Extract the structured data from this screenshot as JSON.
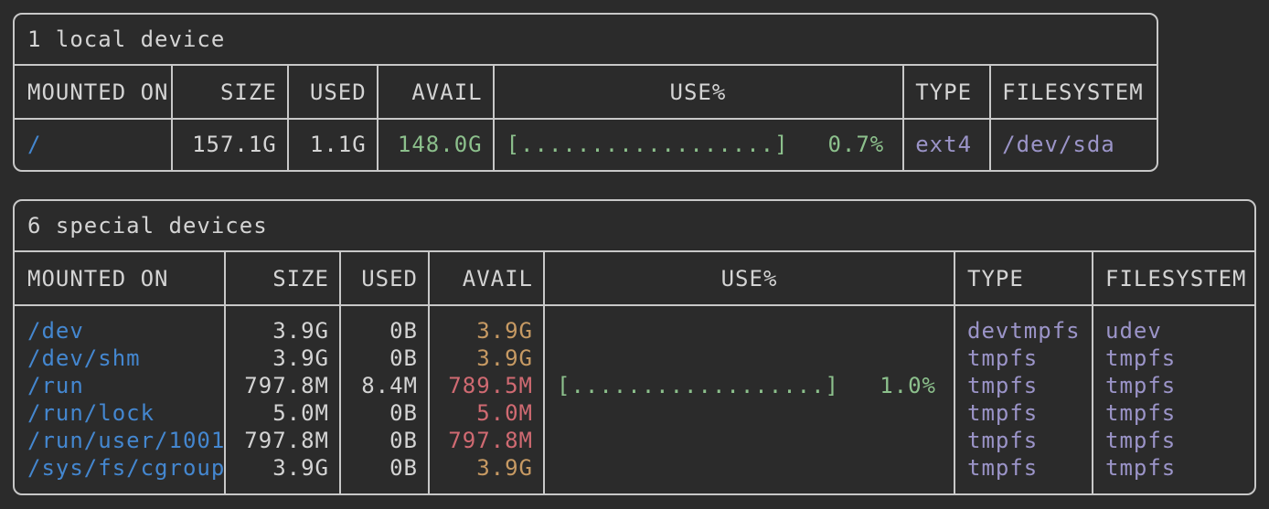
{
  "theme": {
    "background": "#2b2b2b",
    "foreground": "#d4d4d4",
    "border": "#c8c8c8",
    "mount_blue": "#4487d0",
    "ok_green": "#8cc08c",
    "warn_yellow": "#c79a63",
    "low_red": "#d06a72",
    "filesystem_purple": "#9b94c8"
  },
  "tables": [
    {
      "title": "1 local device",
      "columns": {
        "mounted_on": "MOUNTED ON",
        "size": "SIZE",
        "used": "USED",
        "avail": "AVAIL",
        "use_pct": "USE%",
        "type": "TYPE",
        "filesystem": "FILESYSTEM"
      },
      "rows": [
        {
          "mounted_on": "/",
          "size": "157.1G",
          "used": "1.1G",
          "avail": "148.0G",
          "avail_level": "avail-green",
          "use_bar": "[..................]",
          "use_pct": "0.7%",
          "type": "ext4",
          "filesystem": "/dev/sda"
        }
      ]
    },
    {
      "title": "6 special devices",
      "columns": {
        "mounted_on": "MOUNTED ON",
        "size": "SIZE",
        "used": "USED",
        "avail": "AVAIL",
        "use_pct": "USE%",
        "type": "TYPE",
        "filesystem": "FILESYSTEM"
      },
      "rows": [
        {
          "mounted_on": "/dev",
          "size": "3.9G",
          "used": "0B",
          "avail": "3.9G",
          "avail_level": "avail-yellow",
          "use_bar": "",
          "use_pct": "",
          "type": "devtmpfs",
          "filesystem": "udev"
        },
        {
          "mounted_on": "/dev/shm",
          "size": "3.9G",
          "used": "0B",
          "avail": "3.9G",
          "avail_level": "avail-yellow",
          "use_bar": "",
          "use_pct": "",
          "type": "tmpfs",
          "filesystem": "tmpfs"
        },
        {
          "mounted_on": "/run",
          "size": "797.8M",
          "used": "8.4M",
          "avail": "789.5M",
          "avail_level": "avail-red",
          "use_bar": "[..................]",
          "use_pct": "1.0%",
          "type": "tmpfs",
          "filesystem": "tmpfs"
        },
        {
          "mounted_on": "/run/lock",
          "size": "5.0M",
          "used": "0B",
          "avail": "5.0M",
          "avail_level": "avail-red",
          "use_bar": "",
          "use_pct": "",
          "type": "tmpfs",
          "filesystem": "tmpfs"
        },
        {
          "mounted_on": "/run/user/1001",
          "size": "797.8M",
          "used": "0B",
          "avail": "797.8M",
          "avail_level": "avail-red",
          "use_bar": "",
          "use_pct": "",
          "type": "tmpfs",
          "filesystem": "tmpfs"
        },
        {
          "mounted_on": "/sys/fs/cgroup",
          "size": "3.9G",
          "used": "0B",
          "avail": "3.9G",
          "avail_level": "avail-yellow",
          "use_bar": "",
          "use_pct": "",
          "type": "tmpfs",
          "filesystem": "tmpfs"
        }
      ]
    }
  ]
}
